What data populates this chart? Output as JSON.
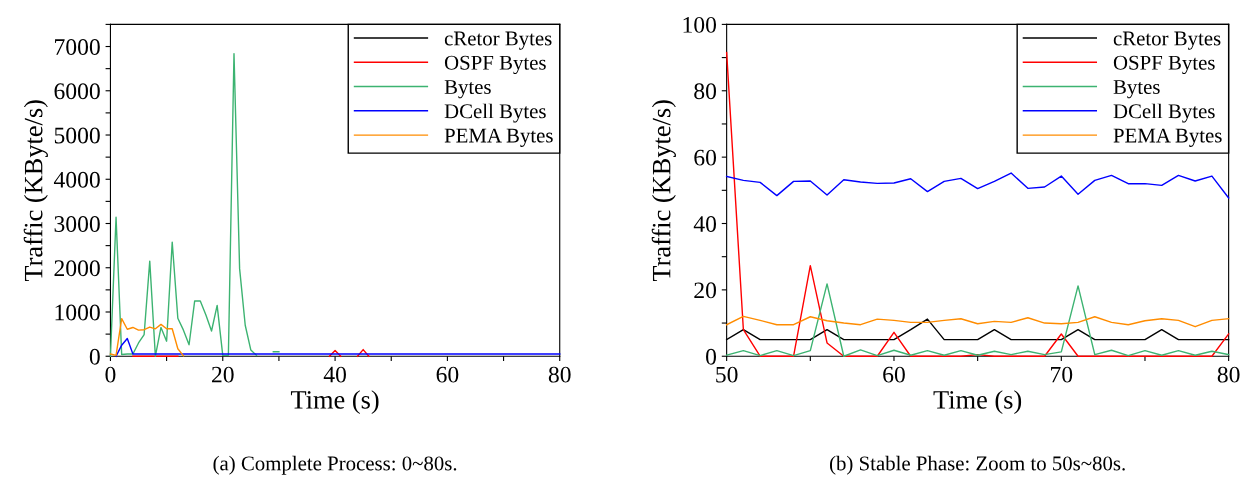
{
  "chart_data": [
    {
      "type": "line",
      "xlabel": "Time (s)",
      "ylabel": "Traffic (KByte/s)",
      "annotations": [
        "(a) Complete Process: 0~80s."
      ],
      "x": [
        0,
        1,
        2,
        3,
        4,
        5,
        6,
        7,
        8,
        9,
        10,
        11,
        12,
        13,
        14,
        15,
        16,
        17,
        18,
        19,
        20,
        21,
        22,
        23,
        24,
        25,
        26,
        27,
        28,
        29,
        30,
        31,
        32,
        33,
        34,
        35,
        36,
        37,
        38,
        39,
        40,
        41,
        42,
        43,
        44,
        45,
        46,
        47,
        48,
        49,
        50,
        51,
        52,
        53,
        54,
        55,
        56,
        57,
        58,
        59,
        60,
        61,
        62,
        63,
        64,
        65,
        66,
        67,
        68,
        69,
        70,
        71,
        72,
        73,
        74,
        75,
        76,
        77,
        78,
        79,
        80
      ],
      "xlim": [
        0,
        80
      ],
      "xticks": [
        0,
        {
          "value": 10,
          "label": null
        },
        20,
        {
          "value": 30,
          "label": null
        },
        40,
        {
          "value": 50,
          "label": null
        },
        60,
        {
          "value": 70,
          "label": null
        },
        80
      ],
      "ylim": [
        0,
        7500
      ],
      "yticks": [
        0,
        {
          "value": 500,
          "label": null
        },
        1000,
        {
          "value": 1500,
          "label": null
        },
        2000,
        {
          "value": 2500,
          "label": null
        },
        3000,
        {
          "value": 3500,
          "label": null
        },
        4000,
        {
          "value": 4500,
          "label": null
        },
        5000,
        {
          "value": 5500,
          "label": null
        },
        6000,
        {
          "value": 6500,
          "label": null
        },
        7000,
        {
          "value": 7500,
          "label": null
        }
      ],
      "grid": false,
      "legend": "top right",
      "line_style": "solid",
      "marker": "none",
      "series": [
        {
          "name": "cRetor Bytes",
          "color": "#000000",
          "values": [
            null,
            null,
            null,
            null,
            null,
            null,
            null,
            null,
            null,
            null,
            null,
            null,
            null,
            null,
            null,
            null,
            null,
            null,
            null,
            null,
            null,
            null,
            null,
            null,
            null,
            null,
            null,
            null,
            null,
            null,
            null,
            null,
            null,
            null,
            null,
            null,
            null,
            null,
            null,
            null,
            null,
            null,
            null,
            null,
            null,
            null,
            null,
            null,
            null,
            null,
            null,
            null,
            null,
            null,
            null,
            null,
            null,
            null,
            null,
            null,
            null,
            null,
            null,
            null,
            null,
            null,
            null,
            null,
            null,
            null,
            null,
            null,
            null,
            null,
            null,
            null,
            null,
            null,
            null,
            null,
            null
          ]
        },
        {
          "name": "OSPF Bytes",
          "color": "#ff0000",
          "values": [
            null,
            null,
            null,
            null,
            0,
            0,
            0,
            0,
            0,
            0,
            0,
            0,
            0,
            null,
            null,
            null,
            null,
            null,
            null,
            null,
            null,
            null,
            null,
            null,
            null,
            null,
            null,
            null,
            null,
            null,
            null,
            null,
            null,
            null,
            null,
            null,
            null,
            null,
            null,
            0,
            130,
            0,
            null,
            null,
            0,
            150,
            0,
            null,
            null,
            null,
            null,
            null,
            null,
            null,
            null,
            null,
            null,
            null,
            null,
            null,
            null,
            null,
            null,
            null,
            null,
            null,
            null,
            null,
            null,
            null,
            null,
            null,
            null,
            null,
            null,
            null,
            null,
            null,
            null,
            null,
            null
          ]
        },
        {
          "name": "Bytes",
          "color": "#3cb371",
          "values": [
            0,
            3140,
            40,
            50,
            50,
            300,
            490,
            2150,
            0,
            650,
            340,
            2580,
            860,
            590,
            260,
            1250,
            1250,
            930,
            570,
            1150,
            20,
            20,
            6840,
            1980,
            700,
            140,
            20,
            null,
            null,
            100,
            100,
            null,
            null,
            null,
            null,
            null,
            null,
            null,
            null,
            null,
            null,
            null,
            null,
            null,
            null,
            null,
            null,
            null,
            null,
            null,
            null,
            null,
            null,
            null,
            null,
            null,
            null,
            null,
            null,
            null,
            null,
            null,
            null,
            null,
            null,
            null,
            null,
            null,
            null,
            null,
            null,
            null,
            null,
            null,
            null,
            null,
            null,
            null,
            null,
            null,
            null
          ]
        },
        {
          "name": "DCell Bytes",
          "color": "#0000ff",
          "values": [
            null,
            0,
            250,
            400,
            50,
            50,
            50,
            50,
            50,
            50,
            50,
            50,
            50,
            50,
            50,
            50,
            50,
            50,
            50,
            50,
            50,
            50,
            50,
            50,
            50,
            50,
            50,
            50,
            50,
            50,
            50,
            50,
            50,
            50,
            50,
            50,
            50,
            50,
            50,
            50,
            50,
            50,
            50,
            50,
            50,
            50,
            50,
            50,
            50,
            50,
            50,
            50,
            50,
            50,
            50,
            50,
            50,
            50,
            50,
            50,
            50,
            50,
            50,
            50,
            50,
            50,
            50,
            50,
            50,
            50,
            50,
            50,
            50,
            50,
            50,
            50,
            50,
            50,
            50,
            50,
            50
          ]
        },
        {
          "name": "PEMA Bytes",
          "color": "#ff8c00",
          "values": [
            50,
            20,
            850,
            610,
            650,
            590,
            600,
            660,
            620,
            720,
            620,
            620,
            170,
            10,
            null,
            null,
            null,
            null,
            null,
            null,
            null,
            null,
            null,
            null,
            null,
            null,
            null,
            null,
            null,
            null,
            null,
            null,
            null,
            null,
            null,
            null,
            null,
            null,
            null,
            null,
            null,
            null,
            null,
            null,
            null,
            null,
            null,
            null,
            null,
            null,
            null,
            null,
            null,
            null,
            null,
            null,
            null,
            null,
            null,
            null,
            null,
            null,
            null,
            null,
            null,
            null,
            null,
            null,
            null,
            null,
            null,
            null,
            null,
            null,
            null,
            null,
            null,
            null,
            null,
            null,
            null
          ]
        }
      ]
    },
    {
      "type": "line",
      "xlabel": "Time (s)",
      "ylabel": "Traffic (KByte/s)",
      "annotations": [
        "(b) Stable Phase: Zoom to 50s~80s."
      ],
      "x": [
        50,
        51,
        52,
        53,
        54,
        55,
        56,
        57,
        58,
        59,
        60,
        61,
        62,
        63,
        64,
        65,
        66,
        67,
        68,
        69,
        70,
        71,
        72,
        73,
        74,
        75,
        76,
        77,
        78,
        79,
        80
      ],
      "xlim": [
        50,
        80
      ],
      "xticks": [
        50,
        {
          "value": 55,
          "label": null
        },
        60,
        {
          "value": 65,
          "label": null
        },
        70,
        {
          "value": 75,
          "label": null
        },
        80
      ],
      "ylim": [
        0,
        100
      ],
      "yticks": [
        0,
        {
          "value": 10,
          "label": null
        },
        20,
        {
          "value": 30,
          "label": null
        },
        40,
        {
          "value": 50,
          "label": null
        },
        60,
        {
          "value": 70,
          "label": null
        },
        80,
        {
          "value": 90,
          "label": null
        },
        100
      ],
      "grid": false,
      "legend": "top right",
      "line_style": "solid",
      "marker": "none",
      "series": [
        {
          "name": "cRetor Bytes",
          "color": "#000000",
          "values": [
            5,
            8,
            5,
            5,
            5,
            5,
            8,
            5,
            5,
            5,
            5,
            8,
            11.2,
            5,
            5,
            5,
            8,
            5,
            5,
            5,
            5,
            8,
            5,
            5,
            5,
            5,
            8,
            5,
            5,
            5,
            5
          ]
        },
        {
          "name": "OSPF Bytes",
          "color": "#ff0000",
          "values": [
            91.5,
            8,
            0,
            0,
            0,
            27.3,
            4,
            0,
            0,
            0,
            7.2,
            0,
            0,
            0,
            0,
            0.5,
            0,
            0,
            0,
            0,
            6.7,
            0,
            0,
            0,
            0,
            0,
            0,
            0,
            0,
            0,
            6.7
          ]
        },
        {
          "name": "Bytes",
          "color": "#3cb371",
          "values": [
            0.3,
            1.7,
            0.2,
            1.7,
            0.2,
            1.7,
            21.8,
            0,
            1.9,
            0.2,
            1.8,
            0.3,
            1.7,
            0.3,
            1.7,
            0.3,
            1.5,
            0.5,
            1.5,
            0.5,
            1.3,
            21.2,
            0.5,
            1.8,
            0.2,
            1.7,
            0.3,
            1.7,
            0.3,
            1.5,
            0.5
          ]
        },
        {
          "name": "DCell Bytes",
          "color": "#0000ff",
          "values": [
            54.2,
            53,
            52.4,
            48.4,
            52.7,
            52.8,
            48.6,
            53.2,
            52.5,
            52.1,
            52.2,
            53.5,
            49.6,
            52.7,
            53.6,
            50.5,
            52.7,
            55.2,
            50.6,
            51,
            54.3,
            48.8,
            53,
            54.5,
            52,
            52,
            51.5,
            54.5,
            52.8,
            54.3,
            47.7
          ]
        },
        {
          "name": "PEMA Bytes",
          "color": "#ff8c00",
          "values": [
            9.5,
            12,
            10.8,
            9.5,
            9.5,
            11.9,
            10.7,
            10,
            9.5,
            11.2,
            10.8,
            10.2,
            10.2,
            10.8,
            11.3,
            9.8,
            10.5,
            10.2,
            11.6,
            10,
            9.8,
            10.2,
            11.9,
            10.2,
            9.5,
            10.7,
            11.3,
            10.8,
            8.9,
            10.8,
            11.3
          ]
        }
      ]
    }
  ]
}
